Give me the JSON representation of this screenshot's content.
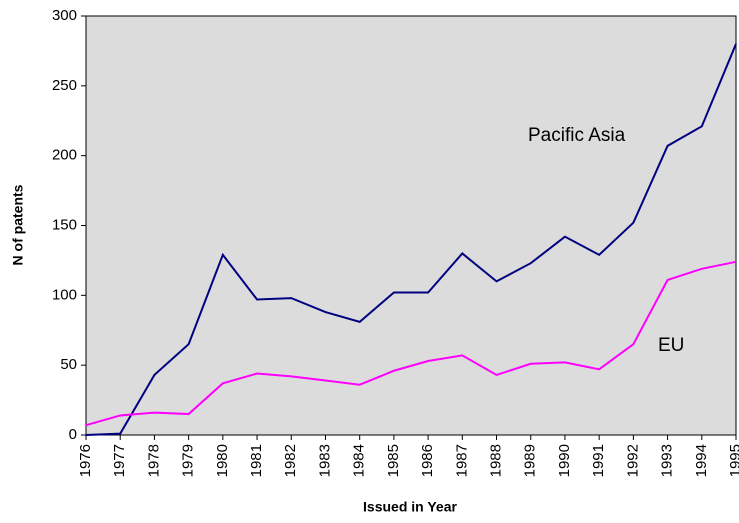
{
  "chart_data": {
    "type": "line",
    "x_label": "Issued in Year",
    "y_label": "N of patents",
    "categories": [
      "1976",
      "1977",
      "1978",
      "1979",
      "1980",
      "1981",
      "1982",
      "1983",
      "1984",
      "1985",
      "1986",
      "1987",
      "1988",
      "1989",
      "1990",
      "1991",
      "1992",
      "1993",
      "1994",
      "1995"
    ],
    "series": [
      {
        "name": "Pacific Asia",
        "color": "#000080",
        "values": [
          0,
          1,
          43,
          65,
          129,
          97,
          98,
          88,
          81,
          102,
          102,
          130,
          110,
          123,
          142,
          129,
          152,
          207,
          221,
          280
        ]
      },
      {
        "name": "EU",
        "color": "#ff00ff",
        "values": [
          7,
          14,
          16,
          15,
          37,
          44,
          42,
          39,
          36,
          46,
          53,
          57,
          43,
          51,
          52,
          47,
          65,
          111,
          119,
          124
        ]
      }
    ],
    "ylim": [
      0,
      300
    ],
    "yticks": [
      0,
      50,
      100,
      150,
      200,
      250,
      300
    ],
    "grid": false,
    "background": "#dcdcdc"
  }
}
